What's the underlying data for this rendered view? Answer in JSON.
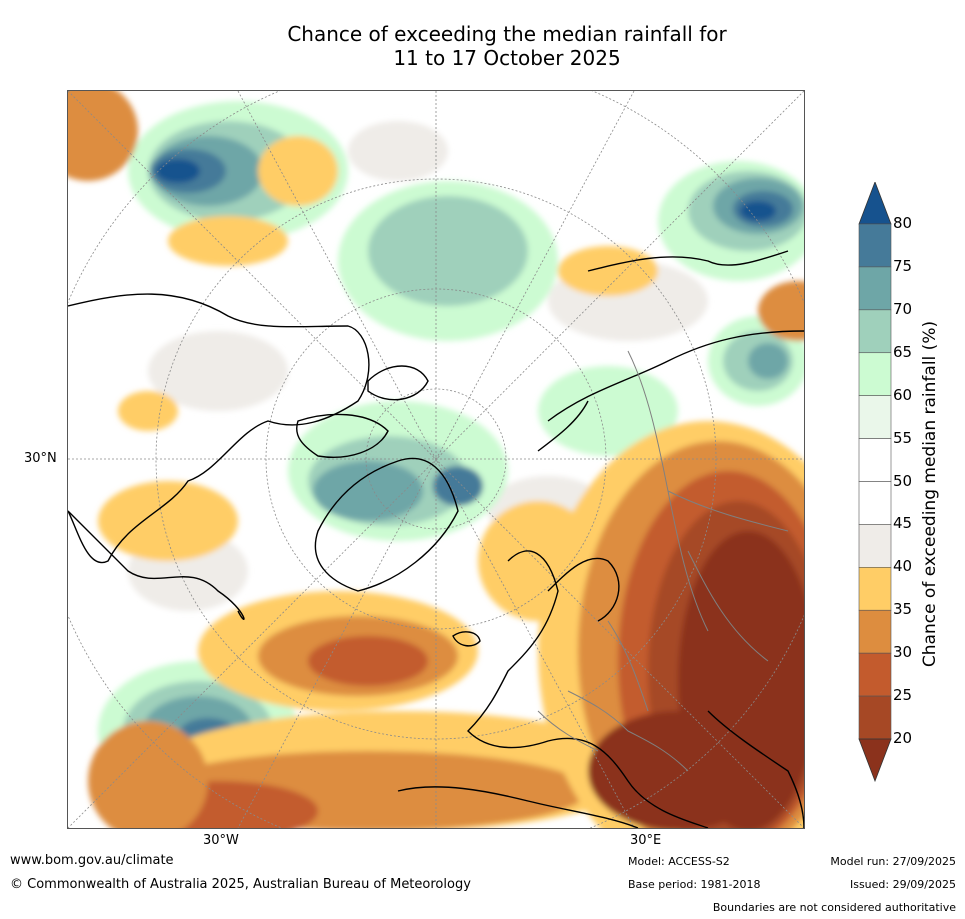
{
  "title_line1": "Chance of exceeding the median rainfall for",
  "title_line2": "11 to 17 October 2025",
  "map": {
    "projection": "north-polar-stereographic",
    "lat_label": "30°N",
    "lon_labels": {
      "west": "30°W",
      "east": "30°E"
    },
    "layers": [
      "probability-contours",
      "coastlines",
      "country-borders",
      "graticule"
    ]
  },
  "colorbar": {
    "title": "Chance of exceeding median rainfall (%)",
    "ticks": [
      "80",
      "75",
      "70",
      "65",
      "60",
      "55",
      "50",
      "45",
      "40",
      "35",
      "30",
      "25",
      "20"
    ],
    "bands": [
      {
        "range": "above 80",
        "color": "#16528e"
      },
      {
        "range": "75-80",
        "color": "#457a99"
      },
      {
        "range": "70-75",
        "color": "#6ea6a7"
      },
      {
        "range": "65-70",
        "color": "#9fd0bb"
      },
      {
        "range": "60-65",
        "color": "#ccfbd2"
      },
      {
        "range": "55-60",
        "color": "#eaf7ea"
      },
      {
        "range": "50-55",
        "color": "#ffffff"
      },
      {
        "range": "45-50",
        "color": "#ffffff"
      },
      {
        "range": "40-45",
        "color": "#efece8"
      },
      {
        "range": "35-40",
        "color": "#ffcd66"
      },
      {
        "range": "30-35",
        "color": "#dd8d3f"
      },
      {
        "range": "25-30",
        "color": "#c35b2d"
      },
      {
        "range": "20-25",
        "color": "#a64825"
      },
      {
        "range": "below 20",
        "color": "#8b321c"
      }
    ]
  },
  "footer": {
    "website": "www.bom.gov.au/climate",
    "copyright": "© Commonwealth of Australia 2025, Australian Bureau of Meteorology",
    "model": "Model: ACCESS-S2",
    "base_period": "Base period: 1981-2018",
    "model_run": "Model run: 27/09/2025",
    "issued": "Issued: 29/09/2025",
    "disclaimer": "Boundaries are not considered authoritative"
  }
}
